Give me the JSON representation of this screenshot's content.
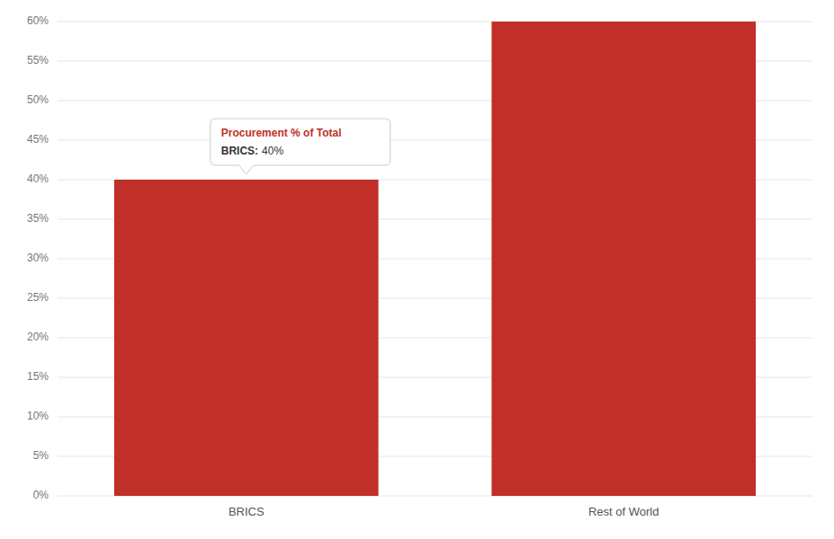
{
  "chart_data": {
    "type": "bar",
    "categories": [
      "BRICS",
      "Rest of World"
    ],
    "values": [
      40,
      60
    ],
    "color": "#c03028",
    "ylim": [
      0,
      60
    ],
    "yticks": [
      {
        "value": 0,
        "label": "0%"
      },
      {
        "value": 5,
        "label": "5%"
      },
      {
        "value": 10,
        "label": "10%"
      },
      {
        "value": 15,
        "label": "15%"
      },
      {
        "value": 20,
        "label": "20%"
      },
      {
        "value": 25,
        "label": "25%"
      },
      {
        "value": 30,
        "label": "30%"
      },
      {
        "value": 35,
        "label": "35%"
      },
      {
        "value": 40,
        "label": "40%"
      },
      {
        "value": 45,
        "label": "45%"
      },
      {
        "value": 50,
        "label": "50%"
      },
      {
        "value": 55,
        "label": "55%"
      },
      {
        "value": 60,
        "label": "60%"
      }
    ],
    "grid": true,
    "annotations": [
      {
        "title": "Procurement % of Total",
        "label": "BRICS:",
        "text": "40%"
      }
    ]
  }
}
